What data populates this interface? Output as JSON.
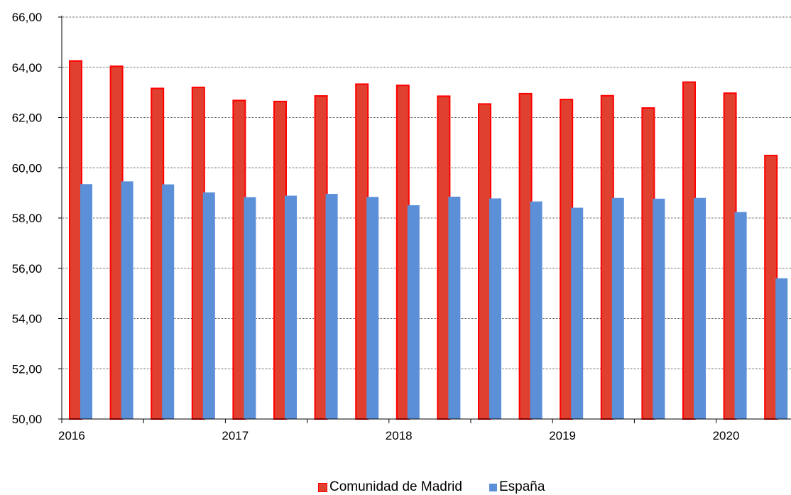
{
  "chart_data": {
    "type": "bar",
    "ylim": [
      50,
      66
    ],
    "y_ticks": [
      "50,00",
      "52,00",
      "54,00",
      "56,00",
      "58,00",
      "60,00",
      "62,00",
      "64,00",
      "66,00"
    ],
    "x_tick_labels": [
      "2016",
      "2017",
      "2018",
      "2019",
      "2020"
    ],
    "grid": true,
    "legend_position": "bottom",
    "series": [
      {
        "name": "Comunidad de Madrid",
        "fill": "#e0402f",
        "stroke": "#ff0000",
        "values": [
          64.25,
          64.04,
          63.16,
          63.2,
          62.68,
          62.64,
          62.86,
          63.33,
          63.28,
          62.85,
          62.54,
          62.95,
          62.72,
          62.87,
          62.38,
          63.41,
          62.97,
          60.49
        ]
      },
      {
        "name": "España",
        "fill": "#5b8fd7",
        "stroke": "#5b8fd7",
        "values": [
          59.35,
          59.46,
          59.34,
          59.02,
          58.83,
          58.89,
          58.96,
          58.84,
          58.51,
          58.85,
          58.78,
          58.66,
          58.41,
          58.8,
          58.77,
          58.8,
          58.24,
          55.6
        ]
      }
    ]
  }
}
